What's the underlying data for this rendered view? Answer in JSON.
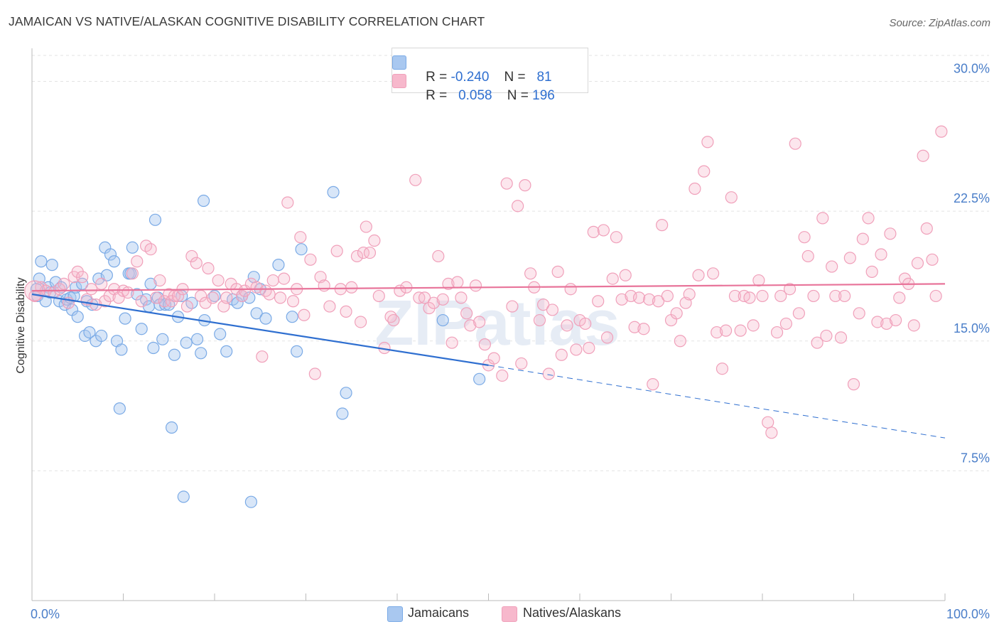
{
  "title": "JAMAICAN VS NATIVE/ALASKAN COGNITIVE DISABILITY CORRELATION CHART",
  "source": "Source: ZipAtlas.com",
  "watermark": "ZIPatlas",
  "legend": {
    "rows": [
      {
        "r_label": "R =",
        "r_value": "-0.240",
        "n_label": "N =",
        "n_value": "81",
        "color": "#a9c8f0"
      },
      {
        "r_label": "R =",
        "r_value": "0.058",
        "n_label": "N =",
        "n_value": "196",
        "color": "#f7b8cc"
      }
    ]
  },
  "bottom_legend": [
    {
      "label": "Jamaicans",
      "color": "#a9c8f0"
    },
    {
      "label": "Natives/Alaskans",
      "color": "#f7b8cc"
    }
  ],
  "chart_data": {
    "type": "scatter",
    "title": "JAMAICAN VS NATIVE/ALASKAN COGNITIVE DISABILITY CORRELATION CHART",
    "xlabel": "",
    "ylabel": "Cognitive Disability",
    "xlim": [
      0,
      100
    ],
    "ylim": [
      0,
      31.5
    ],
    "x_tick_labels": [
      "0.0%",
      "100.0%"
    ],
    "y_ticks": [
      7.5,
      15.0,
      22.5,
      30.0
    ],
    "y_tick_labels": [
      "7.5%",
      "15.0%",
      "22.5%",
      "30.0%"
    ],
    "grid": true,
    "legend_position": "top-center",
    "series": [
      {
        "name": "Jamaicans",
        "color": "#7aaae6",
        "trend": {
          "x0": 0,
          "y0": 17.7,
          "x1": 50,
          "y1": 13.6,
          "x_dashed_end": 100,
          "y_dashed_end": 9.4
        },
        "points": [
          [
            0.5,
            18.0
          ],
          [
            0.6,
            17.6
          ],
          [
            0.8,
            18.6
          ],
          [
            1.0,
            19.6
          ],
          [
            1.5,
            17.3
          ],
          [
            1.8,
            18.1
          ],
          [
            2.0,
            17.8
          ],
          [
            2.2,
            19.4
          ],
          [
            2.6,
            18.4
          ],
          [
            3.0,
            17.3
          ],
          [
            3.2,
            18.1
          ],
          [
            3.6,
            17.1
          ],
          [
            3.8,
            17.4
          ],
          [
            4.2,
            17.5
          ],
          [
            4.4,
            16.8
          ],
          [
            4.6,
            17.6
          ],
          [
            4.8,
            18.1
          ],
          [
            5.0,
            16.4
          ],
          [
            5.5,
            18.3
          ],
          [
            5.8,
            15.3
          ],
          [
            6.0,
            17.3
          ],
          [
            6.3,
            15.5
          ],
          [
            6.6,
            17.1
          ],
          [
            7.0,
            15.0
          ],
          [
            7.3,
            18.6
          ],
          [
            7.6,
            15.3
          ],
          [
            8.0,
            20.4
          ],
          [
            8.2,
            18.8
          ],
          [
            8.6,
            20.0
          ],
          [
            9.0,
            19.6
          ],
          [
            9.3,
            15.0
          ],
          [
            9.6,
            11.1
          ],
          [
            9.8,
            14.5
          ],
          [
            10.2,
            16.3
          ],
          [
            10.6,
            18.9
          ],
          [
            10.8,
            18.9
          ],
          [
            11.0,
            20.4
          ],
          [
            11.5,
            17.7
          ],
          [
            12.0,
            15.7
          ],
          [
            12.5,
            17.4
          ],
          [
            12.8,
            17.0
          ],
          [
            13.0,
            18.3
          ],
          [
            13.3,
            14.6
          ],
          [
            13.5,
            22.0
          ],
          [
            13.8,
            17.5
          ],
          [
            14.0,
            17.1
          ],
          [
            14.3,
            15.1
          ],
          [
            14.6,
            17.1
          ],
          [
            15.0,
            17.1
          ],
          [
            15.3,
            10.0
          ],
          [
            15.6,
            14.2
          ],
          [
            16.0,
            16.4
          ],
          [
            16.4,
            17.6
          ],
          [
            16.6,
            6.0
          ],
          [
            16.9,
            14.9
          ],
          [
            17.5,
            17.2
          ],
          [
            18.1,
            15.1
          ],
          [
            18.5,
            14.3
          ],
          [
            18.8,
            23.1
          ],
          [
            18.9,
            16.2
          ],
          [
            20.0,
            17.6
          ],
          [
            20.6,
            15.4
          ],
          [
            21.3,
            14.4
          ],
          [
            22.0,
            17.4
          ],
          [
            22.5,
            17.2
          ],
          [
            23.0,
            17.6
          ],
          [
            23.8,
            17.5
          ],
          [
            24.0,
            5.7
          ],
          [
            24.3,
            18.7
          ],
          [
            24.6,
            16.6
          ],
          [
            25.0,
            18.0
          ],
          [
            25.6,
            16.3
          ],
          [
            27.0,
            19.4
          ],
          [
            28.5,
            16.4
          ],
          [
            29.0,
            14.4
          ],
          [
            29.5,
            20.3
          ],
          [
            33.0,
            23.6
          ],
          [
            34.0,
            10.8
          ],
          [
            34.4,
            12.0
          ],
          [
            45.0,
            16.2
          ],
          [
            49.0,
            12.8
          ]
        ]
      },
      {
        "name": "Natives/Alaskans",
        "color": "#f0a0ba",
        "trend": {
          "x0": 0,
          "y0": 17.9,
          "x1": 100,
          "y1": 18.3
        },
        "points": [
          [
            0.3,
            17.6
          ],
          [
            1.0,
            18.1
          ],
          [
            1.5,
            17.9
          ],
          [
            2.4,
            17.8
          ],
          [
            3.0,
            18.0
          ],
          [
            3.5,
            18.3
          ],
          [
            4.0,
            17.2
          ],
          [
            4.6,
            18.7
          ],
          [
            5.0,
            19.0
          ],
          [
            5.5,
            18.7
          ],
          [
            6.0,
            17.4
          ],
          [
            6.5,
            18.0
          ],
          [
            7.0,
            17.1
          ],
          [
            7.6,
            18.3
          ],
          [
            8.0,
            17.3
          ],
          [
            8.5,
            17.6
          ],
          [
            9.0,
            18.0
          ],
          [
            9.5,
            17.5
          ],
          [
            10.0,
            17.9
          ],
          [
            10.5,
            17.8
          ],
          [
            11.0,
            18.9
          ],
          [
            11.5,
            19.6
          ],
          [
            12.0,
            17.3
          ],
          [
            12.5,
            20.5
          ],
          [
            13.0,
            20.3
          ],
          [
            13.6,
            17.5
          ],
          [
            14.0,
            18.5
          ],
          [
            14.5,
            17.3
          ],
          [
            15.0,
            17.7
          ],
          [
            15.3,
            17.3
          ],
          [
            15.6,
            17.6
          ],
          [
            16.0,
            17.6
          ],
          [
            16.5,
            18.0
          ],
          [
            17.0,
            17.0
          ],
          [
            17.5,
            19.9
          ],
          [
            18.0,
            19.5
          ],
          [
            18.5,
            17.6
          ],
          [
            19.0,
            17.2
          ],
          [
            19.3,
            19.2
          ],
          [
            19.8,
            17.5
          ],
          [
            20.4,
            18.5
          ],
          [
            21.0,
            17.0
          ],
          [
            21.3,
            17.5
          ],
          [
            21.8,
            18.3
          ],
          [
            22.4,
            18.0
          ],
          [
            23.0,
            17.6
          ],
          [
            23.3,
            17.9
          ],
          [
            24.0,
            18.3
          ],
          [
            24.6,
            18.1
          ],
          [
            25.2,
            14.1
          ],
          [
            25.6,
            17.9
          ],
          [
            26.0,
            17.7
          ],
          [
            26.4,
            18.5
          ],
          [
            27.2,
            17.5
          ],
          [
            27.6,
            18.6
          ],
          [
            28.0,
            23.0
          ],
          [
            28.6,
            17.3
          ],
          [
            29.0,
            18.0
          ],
          [
            29.4,
            21.0
          ],
          [
            29.8,
            16.5
          ],
          [
            30.5,
            19.7
          ],
          [
            31.0,
            13.1
          ],
          [
            31.6,
            18.7
          ],
          [
            32.0,
            18.2
          ],
          [
            32.6,
            17.0
          ],
          [
            33.4,
            20.2
          ],
          [
            33.8,
            18.0
          ],
          [
            34.4,
            16.7
          ],
          [
            35.0,
            18.1
          ],
          [
            35.6,
            19.9
          ],
          [
            36.0,
            16.1
          ],
          [
            36.3,
            20.1
          ],
          [
            36.6,
            21.6
          ],
          [
            37.0,
            20.1
          ],
          [
            37.5,
            20.8
          ],
          [
            38.0,
            17.6
          ],
          [
            38.6,
            14.6
          ],
          [
            39.3,
            16.4
          ],
          [
            39.6,
            16.2
          ],
          [
            40.3,
            17.9
          ],
          [
            41.0,
            18.1
          ],
          [
            42.0,
            24.3
          ],
          [
            42.4,
            17.5
          ],
          [
            43.0,
            17.5
          ],
          [
            43.5,
            16.9
          ],
          [
            44.0,
            17.2
          ],
          [
            44.5,
            19.9
          ],
          [
            45.0,
            17.4
          ],
          [
            45.6,
            18.3
          ],
          [
            46.0,
            14.9
          ],
          [
            46.6,
            18.4
          ],
          [
            47.0,
            17.5
          ],
          [
            47.6,
            16.6
          ],
          [
            48.0,
            15.9
          ],
          [
            48.6,
            18.2
          ],
          [
            49.0,
            16.1
          ],
          [
            49.6,
            14.8
          ],
          [
            50.0,
            13.6
          ],
          [
            50.6,
            14.0
          ],
          [
            51.5,
            13.0
          ],
          [
            52.0,
            24.1
          ],
          [
            52.6,
            17.0
          ],
          [
            53.2,
            22.8
          ],
          [
            53.6,
            13.7
          ],
          [
            54.0,
            24.0
          ],
          [
            54.6,
            18.9
          ],
          [
            55.0,
            18.1
          ],
          [
            55.6,
            16.2
          ],
          [
            56.0,
            17.1
          ],
          [
            56.6,
            13.1
          ],
          [
            57.0,
            16.8
          ],
          [
            57.6,
            19.0
          ],
          [
            58.0,
            14.2
          ],
          [
            58.6,
            15.9
          ],
          [
            59.0,
            18.0
          ],
          [
            59.6,
            14.5
          ],
          [
            60.0,
            16.2
          ],
          [
            60.6,
            16.0
          ],
          [
            61.0,
            14.6
          ],
          [
            61.5,
            21.3
          ],
          [
            62.0,
            17.3
          ],
          [
            62.6,
            21.4
          ],
          [
            63.0,
            15.2
          ],
          [
            63.6,
            18.6
          ],
          [
            64.0,
            21.0
          ],
          [
            64.6,
            17.4
          ],
          [
            65.0,
            18.8
          ],
          [
            65.6,
            17.6
          ],
          [
            66.0,
            15.8
          ],
          [
            66.5,
            17.5
          ],
          [
            67.0,
            15.7
          ],
          [
            67.6,
            17.4
          ],
          [
            68.0,
            12.5
          ],
          [
            68.6,
            17.3
          ],
          [
            69.0,
            21.7
          ],
          [
            69.6,
            17.6
          ],
          [
            70.0,
            16.2
          ],
          [
            70.6,
            16.6
          ],
          [
            71.0,
            15.0
          ],
          [
            71.6,
            17.2
          ],
          [
            72.0,
            17.7
          ],
          [
            72.6,
            23.8
          ],
          [
            73.0,
            18.8
          ],
          [
            73.6,
            24.8
          ],
          [
            74.0,
            26.5
          ],
          [
            74.6,
            18.9
          ],
          [
            75.0,
            15.5
          ],
          [
            75.6,
            13.4
          ],
          [
            76.0,
            15.6
          ],
          [
            76.6,
            23.3
          ],
          [
            77.0,
            17.6
          ],
          [
            77.6,
            15.6
          ],
          [
            78.0,
            17.6
          ],
          [
            78.6,
            17.5
          ],
          [
            79.0,
            15.9
          ],
          [
            79.6,
            18.5
          ],
          [
            80.0,
            17.6
          ],
          [
            80.6,
            10.3
          ],
          [
            81.0,
            9.7
          ],
          [
            81.6,
            15.5
          ],
          [
            82.0,
            17.6
          ],
          [
            82.6,
            16.0
          ],
          [
            83.0,
            18.0
          ],
          [
            83.6,
            26.4
          ],
          [
            84.0,
            16.6
          ],
          [
            84.6,
            21.0
          ],
          [
            85.0,
            19.9
          ],
          [
            85.6,
            17.6
          ],
          [
            86.0,
            14.9
          ],
          [
            86.6,
            22.1
          ],
          [
            87.0,
            15.3
          ],
          [
            87.6,
            19.3
          ],
          [
            88.0,
            17.6
          ],
          [
            88.6,
            15.2
          ],
          [
            89.0,
            17.6
          ],
          [
            89.6,
            19.8
          ],
          [
            90.0,
            12.5
          ],
          [
            90.6,
            16.6
          ],
          [
            91.0,
            20.9
          ],
          [
            91.6,
            22.1
          ],
          [
            92.0,
            19.0
          ],
          [
            92.6,
            16.1
          ],
          [
            93.0,
            20.0
          ],
          [
            93.6,
            16.0
          ],
          [
            94.0,
            21.2
          ],
          [
            94.6,
            16.2
          ],
          [
            95.0,
            17.5
          ],
          [
            95.6,
            18.6
          ],
          [
            96.0,
            18.3
          ],
          [
            96.6,
            15.9
          ],
          [
            97.0,
            19.5
          ],
          [
            97.6,
            25.7
          ],
          [
            98.0,
            21.5
          ],
          [
            98.6,
            19.7
          ],
          [
            99.0,
            17.6
          ],
          [
            99.6,
            27.1
          ]
        ]
      }
    ]
  }
}
